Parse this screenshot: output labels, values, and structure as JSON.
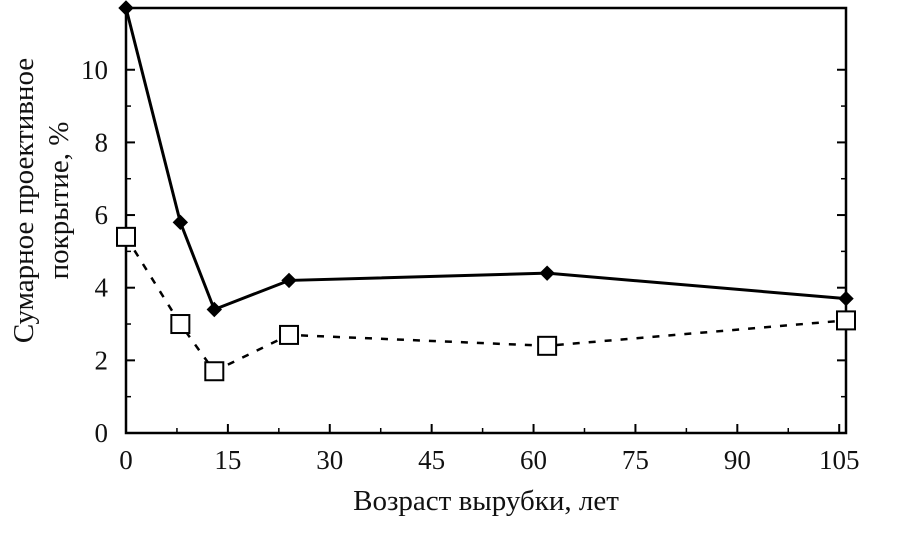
{
  "chart_data": {
    "type": "line",
    "title": "",
    "xlabel": "Возраст вырубки, лет",
    "ylabel": [
      "Сумарное проективное",
      "покрытие, %"
    ],
    "xlim": [
      0,
      106
    ],
    "ylim": [
      0,
      11.7
    ],
    "xticks": [
      0,
      15,
      30,
      45,
      60,
      75,
      90,
      105
    ],
    "yticks": [
      0,
      2,
      4,
      6,
      8,
      10
    ],
    "grid": false,
    "legend": "none",
    "series": [
      {
        "style": "solid",
        "marker": "filled-diamond",
        "color": "#000000",
        "x": [
          0,
          8,
          13,
          24,
          62,
          106
        ],
        "y": [
          11.7,
          5.8,
          3.4,
          4.2,
          4.4,
          3.7
        ]
      },
      {
        "style": "dashed",
        "marker": "open-square",
        "color": "#000000",
        "x": [
          0,
          8,
          13,
          24,
          62,
          106
        ],
        "y": [
          5.4,
          3.0,
          1.7,
          2.7,
          2.4,
          3.1
        ]
      }
    ]
  }
}
